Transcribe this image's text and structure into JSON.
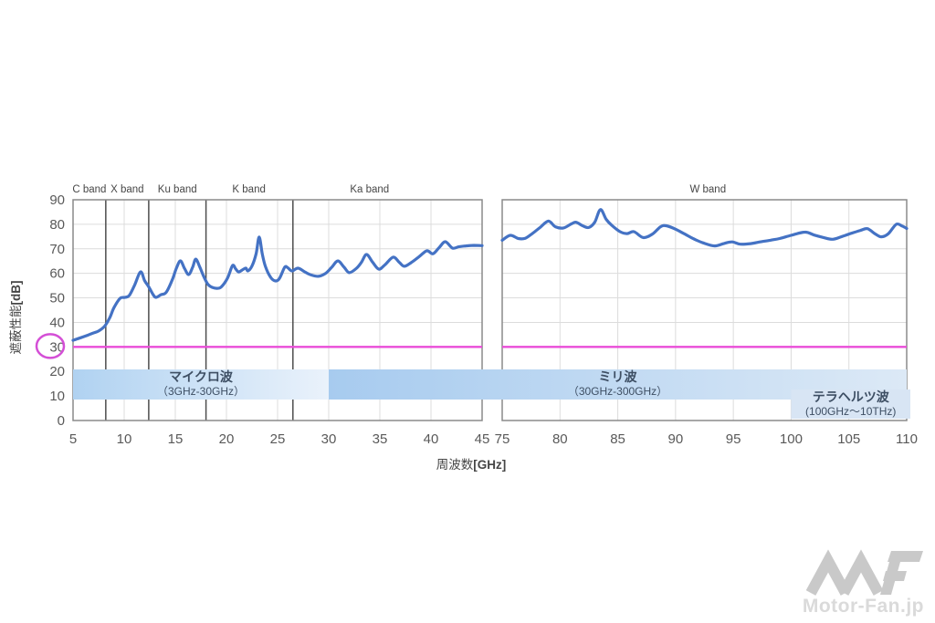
{
  "watermark": {
    "logo_name": "MF",
    "text": "Motor-Fan.jp"
  },
  "chart_data": {
    "type": "line",
    "title": "",
    "xlabel": "周波数",
    "xlabel_unit": "[GHz]",
    "ylabel": "遮蔽性能",
    "ylabel_unit": "[dB]",
    "ylim": [
      0,
      90
    ],
    "yticks": [
      "0",
      "10",
      "20",
      "30",
      "40",
      "50",
      "60",
      "70",
      "80",
      "90"
    ],
    "grid": true,
    "line_color": "#4472c4",
    "grid_color": "#dcdcdc",
    "axis_color": "#8a8a8a",
    "band_edge_color": "#4d4d4d",
    "tick_color": "#595959",
    "band_label_color": "#474747",
    "spectrum_text_color": "#3d4e63",
    "threshold": {
      "db": 30,
      "color": "#ea4cd8",
      "circle_color": "#d44fd6",
      "circled_ytick": "30"
    },
    "panels": [
      {
        "id": "low",
        "xlim": [
          5,
          45
        ],
        "xticks": [
          "5",
          "10",
          "15",
          "20",
          "25",
          "30",
          "35",
          "40",
          "45"
        ],
        "xtick_values": [
          5,
          10,
          15,
          20,
          25,
          30,
          35,
          40,
          45
        ],
        "band_edges_ghz": [
          8.2,
          12.4,
          18.0,
          26.5
        ],
        "band_labels": [
          {
            "text": "C band",
            "ghz": 6.6
          },
          {
            "text": "X band",
            "ghz": 10.3
          },
          {
            "text": "Ku band",
            "ghz": 15.2
          },
          {
            "text": "K band",
            "ghz": 22.2
          },
          {
            "text": "Ka band",
            "ghz": 34.0
          }
        ],
        "points": [
          [
            5,
            32.7
          ],
          [
            5.5,
            33.4
          ],
          [
            6,
            34.1
          ],
          [
            6.5,
            34.9
          ],
          [
            7,
            35.7
          ],
          [
            7.5,
            36.5
          ],
          [
            8.1,
            38.5
          ],
          [
            8.6,
            42
          ],
          [
            9,
            46
          ],
          [
            9.6,
            49.8
          ],
          [
            10.1,
            50.2
          ],
          [
            10.5,
            51
          ],
          [
            11,
            55
          ],
          [
            11.6,
            60.6
          ],
          [
            12,
            57
          ],
          [
            12.4,
            54.5
          ],
          [
            12.8,
            51.5
          ],
          [
            13.1,
            50.2
          ],
          [
            13.6,
            51.3
          ],
          [
            14.1,
            52.2
          ],
          [
            14.7,
            57.3
          ],
          [
            15.1,
            62
          ],
          [
            15.5,
            65.1
          ],
          [
            15.9,
            62
          ],
          [
            16.3,
            59.5
          ],
          [
            16.7,
            62.5
          ],
          [
            17,
            65.8
          ],
          [
            17.4,
            62.5
          ],
          [
            17.8,
            58.5
          ],
          [
            18.2,
            55.5
          ],
          [
            18.6,
            54.3
          ],
          [
            19.1,
            53.9
          ],
          [
            19.5,
            54.5
          ],
          [
            20.1,
            58
          ],
          [
            20.6,
            63.2
          ],
          [
            20.9,
            61.8
          ],
          [
            21.2,
            60.6
          ],
          [
            21.6,
            61.5
          ],
          [
            21.9,
            62.1
          ],
          [
            22.1,
            61
          ],
          [
            22.5,
            63
          ],
          [
            22.9,
            68
          ],
          [
            23.2,
            74.8
          ],
          [
            23.5,
            68
          ],
          [
            23.8,
            62.9
          ],
          [
            24.3,
            58.5
          ],
          [
            24.8,
            56.9
          ],
          [
            25.2,
            58
          ],
          [
            25.7,
            62.5
          ],
          [
            26,
            62.3
          ],
          [
            26.4,
            61
          ],
          [
            27,
            62.1
          ],
          [
            27.7,
            60.5
          ],
          [
            28.3,
            59.3
          ],
          [
            29,
            58.8
          ],
          [
            29.7,
            60
          ],
          [
            30.3,
            62.5
          ],
          [
            30.9,
            65.1
          ],
          [
            31.5,
            62.5
          ],
          [
            32,
            60.3
          ],
          [
            32.7,
            62
          ],
          [
            33.2,
            64.5
          ],
          [
            33.7,
            67.7
          ],
          [
            34.3,
            64.5
          ],
          [
            34.9,
            61.7
          ],
          [
            35.5,
            63.5
          ],
          [
            36.3,
            66.6
          ],
          [
            36.9,
            64.5
          ],
          [
            37.4,
            62.9
          ],
          [
            38.1,
            64.5
          ],
          [
            38.9,
            67
          ],
          [
            39.6,
            69.2
          ],
          [
            40.2,
            68
          ],
          [
            40.8,
            70.5
          ],
          [
            41.4,
            72.9
          ],
          [
            42.1,
            70.3
          ],
          [
            42.7,
            70.8
          ],
          [
            43.4,
            71.2
          ],
          [
            44.2,
            71.4
          ],
          [
            45,
            71.3
          ]
        ]
      },
      {
        "id": "high",
        "xlim": [
          75,
          110
        ],
        "xticks": [
          "75",
          "80",
          "85",
          "90",
          "95",
          "100",
          "105",
          "110"
        ],
        "xtick_values": [
          75,
          80,
          85,
          90,
          95,
          100,
          105,
          110
        ],
        "band_edges_ghz": [],
        "band_labels": [
          {
            "text": "W band",
            "ghz": 92.8
          }
        ],
        "points": [
          [
            75,
            73.5
          ],
          [
            75.7,
            75.5
          ],
          [
            76.4,
            74.2
          ],
          [
            77,
            74.3
          ],
          [
            77.6,
            76.2
          ],
          [
            78.3,
            78.8
          ],
          [
            79,
            81.3
          ],
          [
            79.6,
            79
          ],
          [
            80.3,
            78.5
          ],
          [
            81,
            80.2
          ],
          [
            81.4,
            80.8
          ],
          [
            82,
            79.3
          ],
          [
            82.5,
            78.7
          ],
          [
            83,
            80.8
          ],
          [
            83.5,
            86
          ],
          [
            84,
            82
          ],
          [
            84.5,
            79.5
          ],
          [
            85.2,
            77
          ],
          [
            85.8,
            76.2
          ],
          [
            86.4,
            77
          ],
          [
            87.2,
            74.6
          ],
          [
            88,
            76
          ],
          [
            88.7,
            79
          ],
          [
            89.2,
            79.4
          ],
          [
            90,
            78
          ],
          [
            90.8,
            76
          ],
          [
            91.6,
            74
          ],
          [
            92.4,
            72.4
          ],
          [
            93.4,
            71.2
          ],
          [
            94.2,
            72.2
          ],
          [
            94.9,
            72.8
          ],
          [
            95.6,
            71.9
          ],
          [
            96.5,
            72.1
          ],
          [
            97.3,
            72.8
          ],
          [
            98.2,
            73.5
          ],
          [
            99,
            74.2
          ],
          [
            100,
            75.5
          ],
          [
            101.2,
            76.8
          ],
          [
            102,
            75.6
          ],
          [
            102.8,
            74.6
          ],
          [
            103.6,
            73.9
          ],
          [
            104.4,
            75
          ],
          [
            105.2,
            76.3
          ],
          [
            106,
            77.5
          ],
          [
            106.6,
            78.2
          ],
          [
            107.3,
            76
          ],
          [
            107.8,
            74.9
          ],
          [
            108.4,
            76.1
          ],
          [
            109.1,
            80
          ],
          [
            109.6,
            79.3
          ],
          [
            110,
            78.3
          ]
        ]
      }
    ],
    "spectrum_bands": [
      {
        "label": "マイクロ波",
        "range": "（3GHz-30GHz）",
        "from_ghz": 5,
        "to_ghz": 30,
        "color_from": "#b0d2f1",
        "color_to": "#eaf2fb"
      },
      {
        "label": "ミリ波",
        "range": "（30GHz-300GHz）",
        "from_ghz": 30,
        "to_ghz": 110,
        "color_from": "#a7cbef",
        "color_to": "#dce9f6"
      },
      {
        "label": "テラヘルツ波",
        "range": "(100GHz～10THz)",
        "from_ghz": 100,
        "to_ghz": 111,
        "color_from": "#d8e5f4",
        "color_to": "#d8e5f4"
      }
    ]
  }
}
